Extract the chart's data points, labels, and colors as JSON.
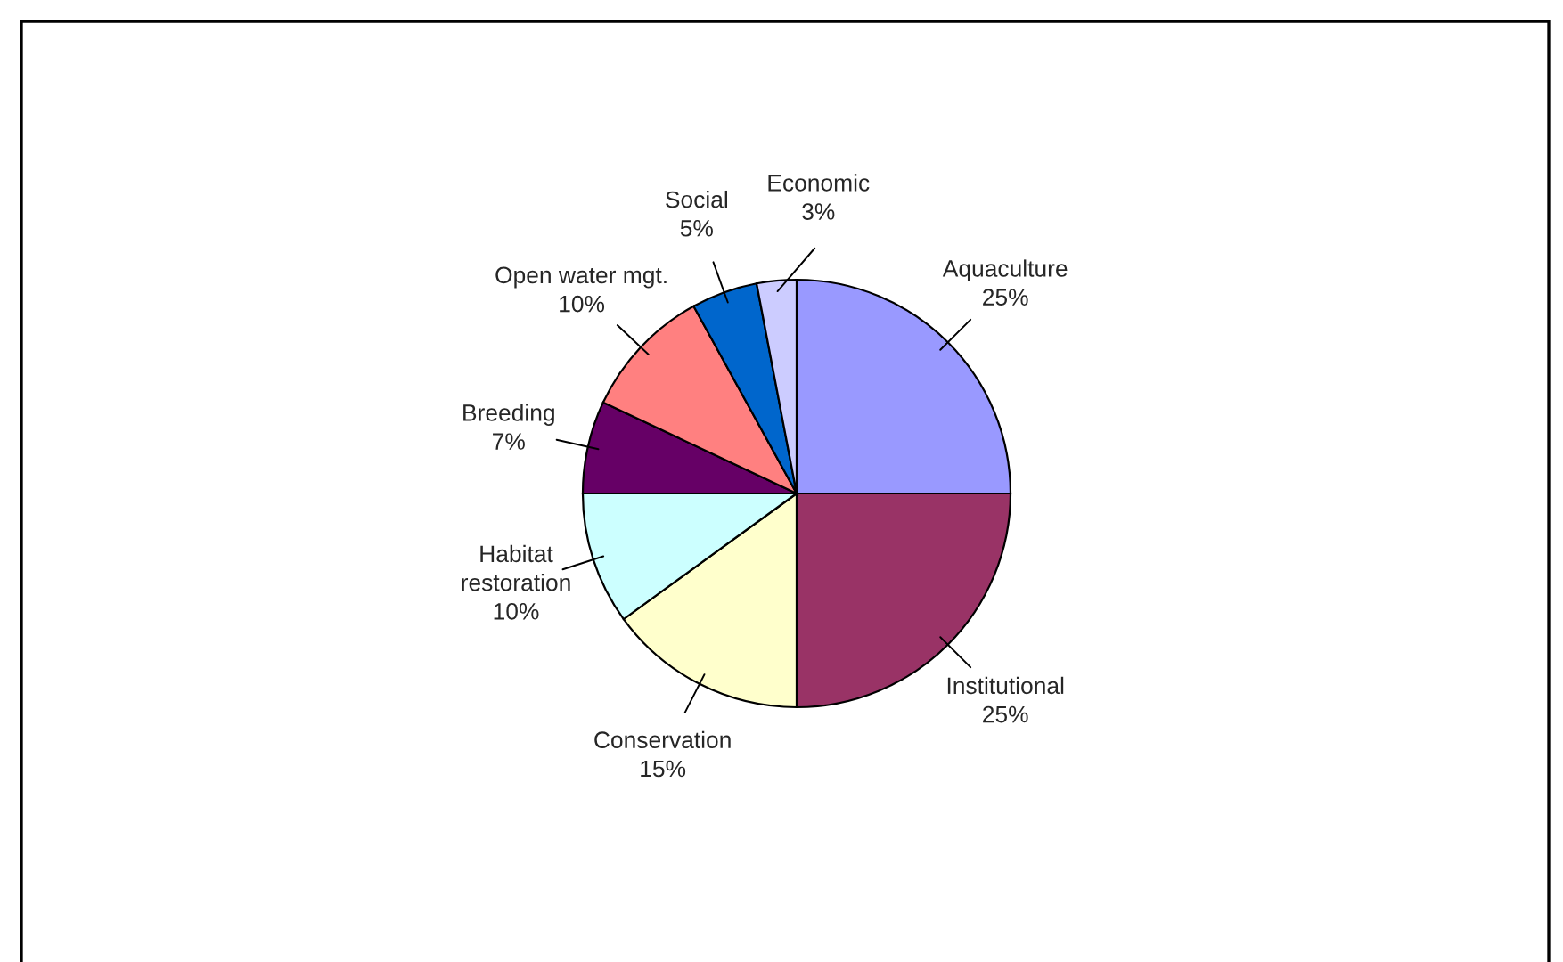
{
  "chart_data": {
    "type": "pie",
    "categories": [
      "Aquaculture",
      "Institutional",
      "Conservation",
      "Habitat\nrestoration",
      "Breeding",
      "Open water mgt.",
      "Social",
      "Economic"
    ],
    "values": [
      25,
      25,
      15,
      10,
      7,
      10,
      5,
      3
    ],
    "value_labels": [
      "25%",
      "25%",
      "15%",
      "10%",
      "7%",
      "10%",
      "5%",
      "3%"
    ],
    "colors": [
      "#9999ff",
      "#993366",
      "#ffffcc",
      "#ccffff",
      "#660066",
      "#ff8080",
      "#0066cc",
      "#ccccff"
    ],
    "legend": false
  }
}
